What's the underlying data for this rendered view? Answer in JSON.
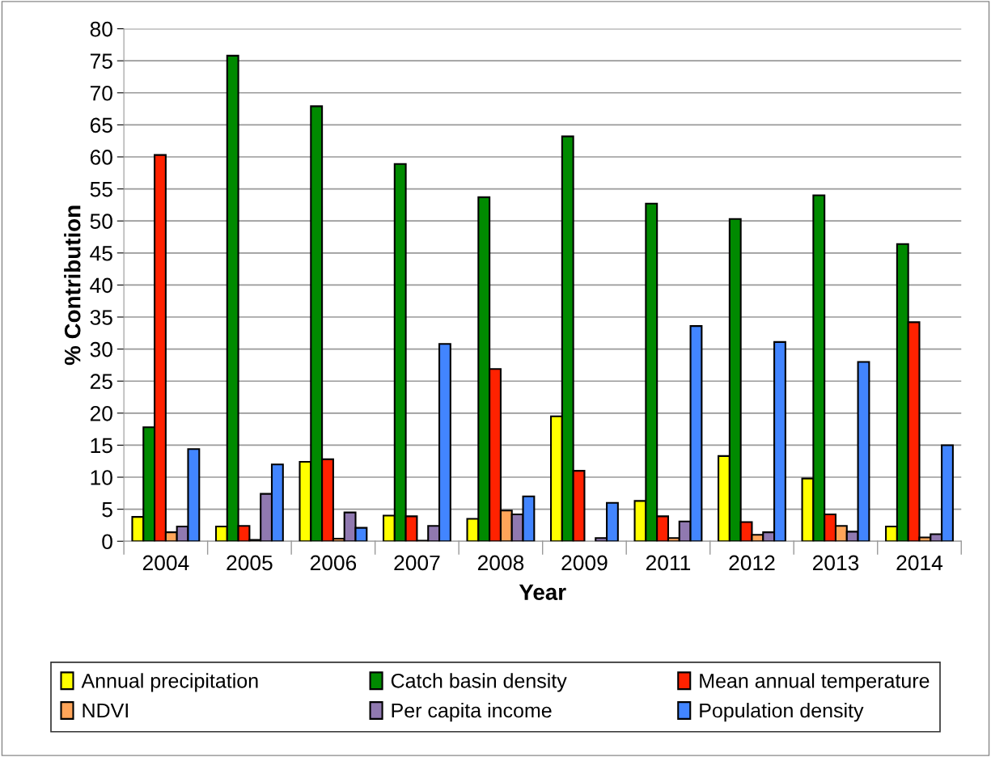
{
  "chart_data": {
    "type": "bar",
    "xlabel": "Year",
    "ylabel": "% Contribution",
    "categories": [
      "2004",
      "2005",
      "2006",
      "2007",
      "2008",
      "2009",
      "2011",
      "2012",
      "2013",
      "2014"
    ],
    "series": [
      {
        "name": "Annual precipitation",
        "color": "#ffff00",
        "values": [
          3.8,
          2.3,
          12.4,
          4.0,
          3.5,
          19.5,
          6.3,
          13.3,
          9.8,
          2.3
        ]
      },
      {
        "name": "Catch basin density",
        "color": "#008a00",
        "values": [
          17.8,
          75.8,
          67.9,
          58.9,
          53.7,
          63.2,
          52.7,
          50.3,
          54.0,
          46.4
        ]
      },
      {
        "name": "Mean annual temperature",
        "color": "#ff2200",
        "values": [
          60.3,
          2.4,
          12.8,
          3.9,
          26.9,
          11.0,
          3.9,
          3.0,
          4.2,
          34.2
        ]
      },
      {
        "name": "NDVI",
        "color": "#ffa559",
        "values": [
          1.4,
          0.2,
          0.4,
          0.1,
          4.8,
          null,
          0.5,
          1.0,
          2.4,
          0.6
        ]
      },
      {
        "name": "Per capita income",
        "color": "#9079b0",
        "values": [
          2.3,
          7.4,
          4.5,
          2.4,
          4.2,
          0.5,
          3.1,
          1.4,
          1.5,
          1.1
        ]
      },
      {
        "name": "Population density",
        "color": "#4285ff",
        "values": [
          14.4,
          12.0,
          2.1,
          30.8,
          7.0,
          6.0,
          33.6,
          31.1,
          28.0,
          15.0
        ]
      }
    ],
    "ylim": [
      0,
      80
    ],
    "yticks": [
      0,
      5,
      10,
      15,
      20,
      25,
      30,
      35,
      40,
      45,
      50,
      55,
      60,
      65,
      70,
      75,
      80
    ],
    "grid": "y",
    "legend": "bottom"
  }
}
